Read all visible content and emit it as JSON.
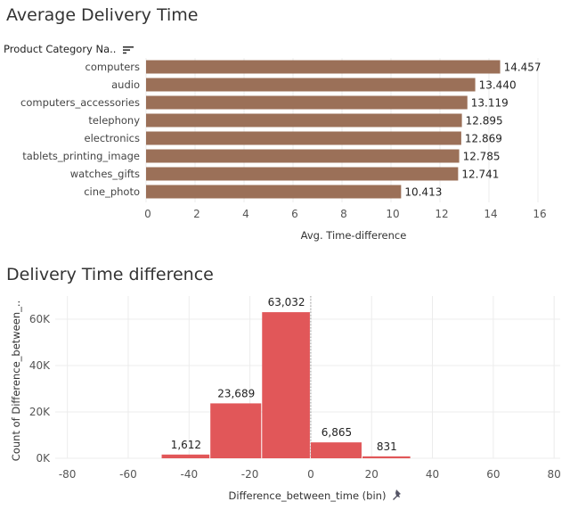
{
  "chart_data": [
    {
      "type": "bar",
      "orientation": "horizontal",
      "title": "Average Delivery Time",
      "row_header": "Product Category Na..",
      "categories": [
        "computers",
        "audio",
        "computers_accessories",
        "telephony",
        "electronics",
        "tablets_printing_image",
        "watches_gifts",
        "cine_photo"
      ],
      "values": [
        14.457,
        13.44,
        13.119,
        12.895,
        12.869,
        12.785,
        12.741,
        10.413
      ],
      "value_labels": [
        "14.457",
        "13.440",
        "13.119",
        "12.895",
        "12.869",
        "12.785",
        "12.741",
        "10.413"
      ],
      "xlabel": "Avg. Time-difference",
      "xlim": [
        0,
        16
      ],
      "xticks": [
        0,
        2,
        4,
        6,
        8,
        10,
        12,
        14,
        16
      ],
      "grid": true,
      "color": "#9b7058",
      "sort_icon": "sort-descending-icon"
    },
    {
      "type": "bar",
      "subtype": "histogram",
      "title": "Delivery Time difference",
      "bins": [
        {
          "start": -49,
          "end": -33,
          "count": 1612,
          "label": "1,612"
        },
        {
          "start": -33,
          "end": -16,
          "count": 23689,
          "label": "23,689"
        },
        {
          "start": -16,
          "end": 0,
          "count": 63032,
          "label": "63,032"
        },
        {
          "start": 0,
          "end": 17,
          "count": 6865,
          "label": "6,865"
        },
        {
          "start": 17,
          "end": 33,
          "count": 831,
          "label": "831"
        }
      ],
      "xlabel": "Difference_between_time (bin)",
      "ylabel": "Count of Difference_between_..",
      "xlim": [
        -84,
        82
      ],
      "xticks": [
        -80,
        -60,
        -40,
        -20,
        0,
        20,
        40,
        60,
        80
      ],
      "ylim": [
        0,
        70000
      ],
      "yticks": [
        0,
        20000,
        40000,
        60000
      ],
      "ytick_labels": [
        "0K",
        "20K",
        "40K",
        "60K"
      ],
      "grid": true,
      "zero_reference_line": true,
      "color": "#e15759",
      "pin_icon": "pin-icon"
    }
  ]
}
